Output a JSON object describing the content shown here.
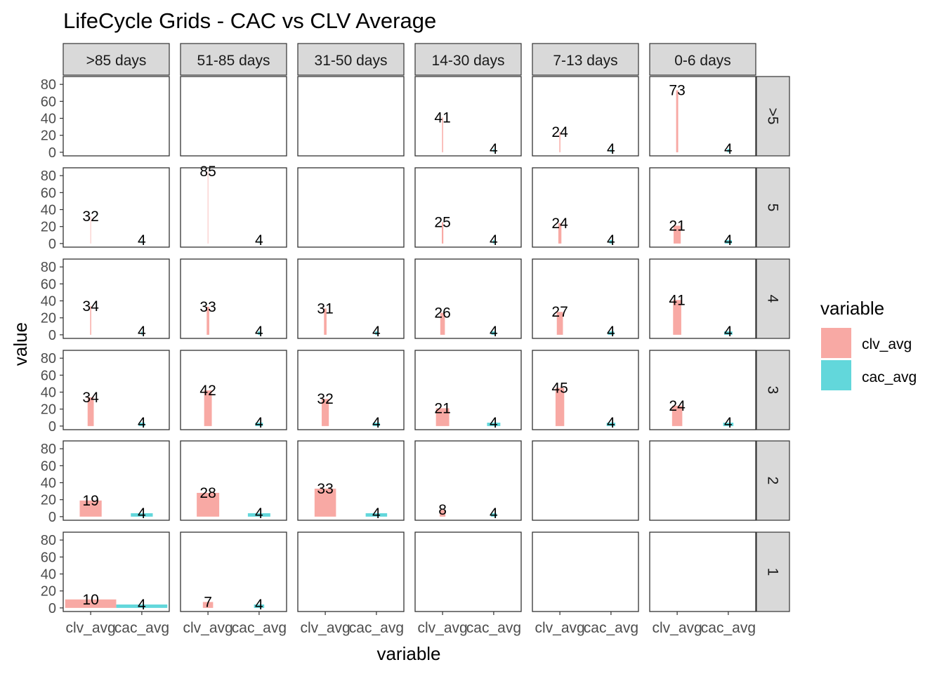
{
  "chart_data": {
    "type": "bar",
    "title": "LifeCycle Grids - CAC vs CLV Average",
    "xlabel": "variable",
    "ylabel": "value",
    "ylim": [
      0,
      85
    ],
    "yticks": [
      0,
      20,
      40,
      60,
      80
    ],
    "categories": [
      "clv_avg",
      "cac_avg"
    ],
    "col_facets": [
      ">85 days",
      "51-85 days",
      "31-50 days",
      "14-30 days",
      "7-13 days",
      "0-6 days"
    ],
    "row_facets": [
      ">5",
      "5",
      "4",
      "3",
      "2",
      "1"
    ],
    "bar_width_encodes": "relative group size",
    "legend": {
      "title": "variable",
      "placement": "right",
      "entries": [
        {
          "name": "clv_avg",
          "color": "#F8A9A4"
        },
        {
          "name": "cac_avg",
          "color": "#62D7DB"
        }
      ]
    },
    "panels": [
      {
        "row": ">5",
        "col": ">85 days",
        "values": null
      },
      {
        "row": ">5",
        "col": "51-85 days",
        "values": null
      },
      {
        "row": ">5",
        "col": "31-50 days",
        "values": null
      },
      {
        "row": ">5",
        "col": "14-30 days",
        "values": [
          41,
          4
        ],
        "width": 0.02
      },
      {
        "row": ">5",
        "col": "7-13 days",
        "values": [
          24,
          4
        ],
        "width": 0.02
      },
      {
        "row": ">5",
        "col": "0-6 days",
        "values": [
          73,
          4
        ],
        "width": 0.04
      },
      {
        "row": "5",
        "col": ">85 days",
        "values": [
          32,
          4
        ],
        "width": 0.01
      },
      {
        "row": "5",
        "col": "51-85 days",
        "values": [
          85,
          4
        ],
        "width": 0.01
      },
      {
        "row": "5",
        "col": "31-50 days",
        "values": null
      },
      {
        "row": "5",
        "col": "14-30 days",
        "values": [
          25,
          4
        ],
        "width": 0.03
      },
      {
        "row": "5",
        "col": "7-13 days",
        "values": [
          24,
          4
        ],
        "width": 0.06
      },
      {
        "row": "5",
        "col": "0-6 days",
        "values": [
          21,
          4
        ],
        "width": 0.14
      },
      {
        "row": "4",
        "col": ">85 days",
        "values": [
          34,
          4
        ],
        "width": 0.02
      },
      {
        "row": "4",
        "col": "51-85 days",
        "values": [
          33,
          4
        ],
        "width": 0.05
      },
      {
        "row": "4",
        "col": "31-50 days",
        "values": [
          31,
          4
        ],
        "width": 0.05
      },
      {
        "row": "4",
        "col": "14-30 days",
        "values": [
          26,
          4
        ],
        "width": 0.09
      },
      {
        "row": "4",
        "col": "7-13 days",
        "values": [
          27,
          4
        ],
        "width": 0.12
      },
      {
        "row": "4",
        "col": "0-6 days",
        "values": [
          41,
          4
        ],
        "width": 0.16
      },
      {
        "row": "3",
        "col": ">85 days",
        "values": [
          34,
          4
        ],
        "width": 0.12
      },
      {
        "row": "3",
        "col": "51-85 days",
        "values": [
          42,
          4
        ],
        "width": 0.15
      },
      {
        "row": "3",
        "col": "31-50 days",
        "values": [
          32,
          4
        ],
        "width": 0.14
      },
      {
        "row": "3",
        "col": "14-30 days",
        "values": [
          21,
          4
        ],
        "width": 0.26
      },
      {
        "row": "3",
        "col": "7-13 days",
        "values": [
          45,
          4
        ],
        "width": 0.17
      },
      {
        "row": "3",
        "col": "0-6 days",
        "values": [
          24,
          4
        ],
        "width": 0.2
      },
      {
        "row": "2",
        "col": ">85 days",
        "values": [
          19,
          4
        ],
        "width": 0.43
      },
      {
        "row": "2",
        "col": "51-85 days",
        "values": [
          28,
          4
        ],
        "width": 0.44
      },
      {
        "row": "2",
        "col": "31-50 days",
        "values": [
          33,
          4
        ],
        "width": 0.42
      },
      {
        "row": "2",
        "col": "14-30 days",
        "values": [
          8,
          4
        ],
        "width": 0.11
      },
      {
        "row": "2",
        "col": "7-13 days",
        "values": null
      },
      {
        "row": "2",
        "col": "0-6 days",
        "values": null
      },
      {
        "row": "1",
        "col": ">85 days",
        "values": [
          10,
          4
        ],
        "width": 1.0
      },
      {
        "row": "1",
        "col": "51-85 days",
        "values": [
          7,
          4
        ],
        "width": 0.2
      },
      {
        "row": "1",
        "col": "31-50 days",
        "values": null
      },
      {
        "row": "1",
        "col": "14-30 days",
        "values": null
      },
      {
        "row": "1",
        "col": "7-13 days",
        "values": null
      },
      {
        "row": "1",
        "col": "0-6 days",
        "values": null
      }
    ]
  }
}
